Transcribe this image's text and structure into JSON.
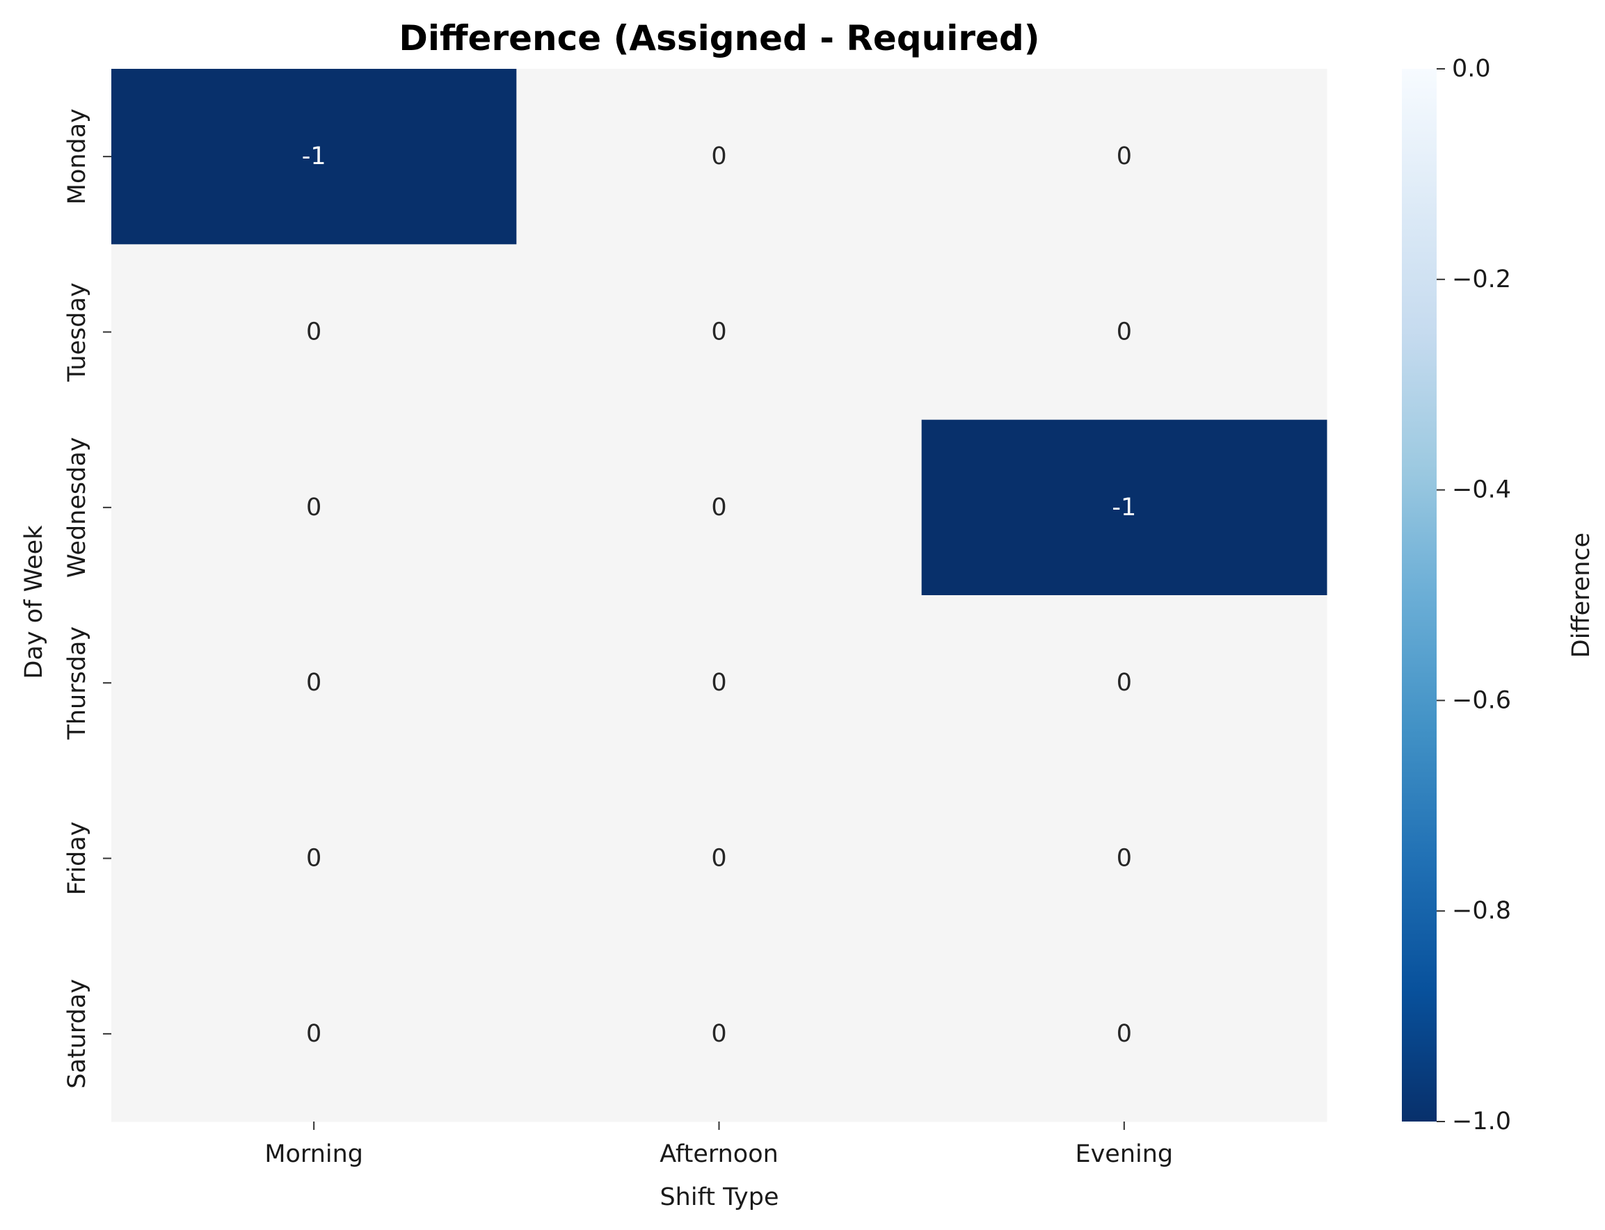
{
  "chart_data": {
    "type": "heatmap",
    "title": "Difference (Assigned - Required)",
    "xlabel": "Shift Type",
    "ylabel": "Day of Week",
    "x_categories": [
      "Morning",
      "Afternoon",
      "Evening"
    ],
    "y_categories": [
      "Monday",
      "Tuesday",
      "Wednesday",
      "Thursday",
      "Friday",
      "Saturday"
    ],
    "values": [
      [
        -1,
        0,
        0
      ],
      [
        0,
        0,
        0
      ],
      [
        0,
        0,
        -1
      ],
      [
        0,
        0,
        0
      ],
      [
        0,
        0,
        0
      ],
      [
        0,
        0,
        0
      ]
    ],
    "cell_labels": [
      [
        "-1",
        "0",
        "0"
      ],
      [
        "0",
        "0",
        "0"
      ],
      [
        "0",
        "0",
        "-1"
      ],
      [
        "0",
        "0",
        "0"
      ],
      [
        "0",
        "0",
        "0"
      ],
      [
        "0",
        "0",
        "0"
      ]
    ],
    "colormap": "Blues_r",
    "colorbar": {
      "label": "Difference",
      "range": [
        -1.0,
        0.0
      ],
      "ticks": [
        0.0,
        -0.2,
        -0.4,
        -0.6,
        -0.8,
        -1.0
      ],
      "tick_labels": [
        "0.0",
        "−0.2",
        "−0.4",
        "−0.6",
        "−0.8",
        "−1.0"
      ],
      "placement": "right"
    },
    "colors": {
      "min": "#08306b",
      "max": "#f7fbff",
      "cell_zero": "#f5f5f5",
      "text_dark": "#262626",
      "text_light": "#ffffff"
    },
    "grid": false,
    "legend": "none"
  }
}
